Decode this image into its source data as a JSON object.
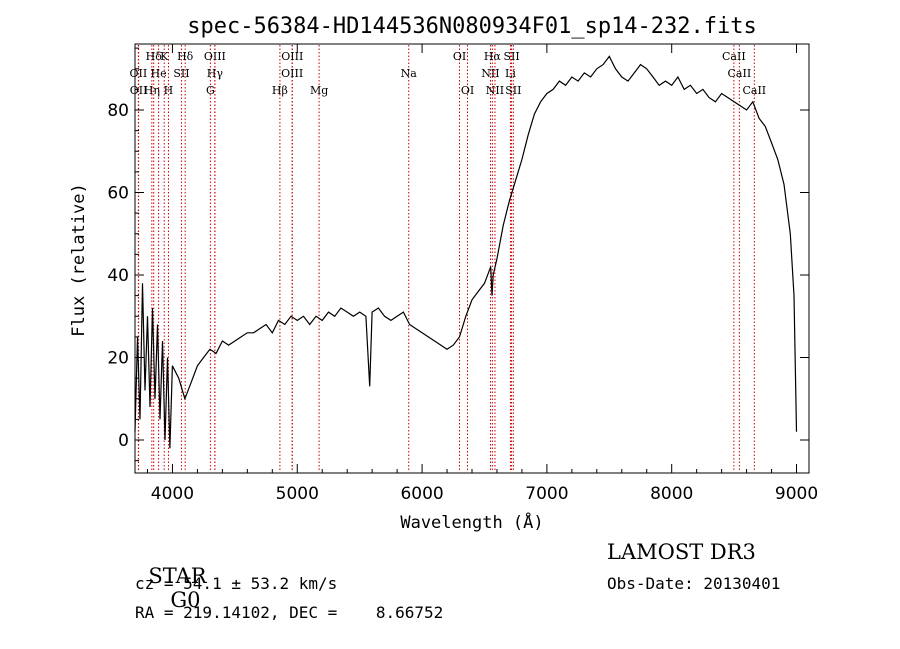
{
  "chart_data": {
    "type": "line",
    "title": "spec-56384-HD144536N080934F01_sp14-232.fits",
    "xlabel": "Wavelength (Å)",
    "ylabel": "Flux (relative)",
    "xlim": [
      3700,
      9100
    ],
    "ylim": [
      -8,
      96
    ],
    "xticks": [
      4000,
      5000,
      6000,
      7000,
      8000,
      9000
    ],
    "xtick_labels": [
      "4000",
      "5000",
      "6000",
      "7000",
      "8000",
      "9000"
    ],
    "yticks": [
      0,
      20,
      40,
      60,
      80
    ],
    "ytick_labels": [
      "0",
      "20",
      "40",
      "60",
      "80"
    ],
    "line_color": "#000000",
    "marker_color": "#cc0000",
    "series": [
      {
        "name": "flux",
        "x": [
          3700,
          3720,
          3740,
          3760,
          3780,
          3800,
          3820,
          3840,
          3860,
          3880,
          3900,
          3920,
          3940,
          3960,
          3980,
          4000,
          4050,
          4100,
          4150,
          4200,
          4250,
          4300,
          4350,
          4400,
          4450,
          4500,
          4550,
          4600,
          4650,
          4700,
          4750,
          4800,
          4850,
          4900,
          4950,
          5000,
          5050,
          5100,
          5150,
          5200,
          5250,
          5300,
          5350,
          5400,
          5450,
          5500,
          5550,
          5580,
          5600,
          5650,
          5700,
          5750,
          5800,
          5850,
          5900,
          5950,
          6000,
          6050,
          6100,
          6150,
          6200,
          6250,
          6300,
          6350,
          6400,
          6450,
          6500,
          6550,
          6560,
          6570,
          6600,
          6650,
          6700,
          6750,
          6800,
          6850,
          6900,
          6950,
          7000,
          7050,
          7100,
          7150,
          7200,
          7250,
          7300,
          7350,
          7400,
          7450,
          7500,
          7550,
          7600,
          7650,
          7700,
          7750,
          7800,
          7850,
          7900,
          7950,
          8000,
          8050,
          8100,
          8150,
          8200,
          8250,
          8300,
          8350,
          8400,
          8450,
          8500,
          8550,
          8600,
          8650,
          8700,
          8750,
          8800,
          8850,
          8900,
          8950,
          8980,
          9000
        ],
        "y": [
          2,
          25,
          5,
          38,
          12,
          30,
          8,
          32,
          10,
          28,
          5,
          24,
          0,
          20,
          -2,
          18,
          15,
          10,
          14,
          18,
          20,
          22,
          21,
          24,
          23,
          24,
          25,
          26,
          26,
          27,
          28,
          26,
          29,
          28,
          30,
          29,
          30,
          28,
          30,
          29,
          31,
          30,
          32,
          31,
          30,
          31,
          30,
          13,
          31,
          32,
          30,
          29,
          30,
          31,
          28,
          27,
          26,
          25,
          24,
          23,
          22,
          23,
          25,
          30,
          34,
          36,
          38,
          42,
          35,
          40,
          44,
          52,
          58,
          63,
          68,
          74,
          79,
          82,
          84,
          85,
          87,
          86,
          88,
          87,
          89,
          88,
          90,
          91,
          93,
          90,
          88,
          87,
          89,
          91,
          90,
          88,
          86,
          87,
          86,
          88,
          85,
          86,
          84,
          85,
          83,
          82,
          84,
          83,
          82,
          81,
          80,
          82,
          78,
          76,
          72,
          68,
          62,
          50,
          35,
          2
        ]
      }
    ],
    "lines": [
      {
        "label": "Hδ",
        "x": 3850,
        "tier": 0
      },
      {
        "label": "K",
        "x": 3934,
        "tier": 0
      },
      {
        "label": "Hδ",
        "x": 4102,
        "tier": 0
      },
      {
        "label": "OIII",
        "x": 4340,
        "tier": 0
      },
      {
        "label": "OIII",
        "x": 4960,
        "tier": 0
      },
      {
        "label": "OI",
        "x": 6300,
        "tier": 0
      },
      {
        "label": "Hα",
        "x": 6563,
        "tier": 0
      },
      {
        "label": "SII",
        "x": 6717,
        "tier": 0
      },
      {
        "label": "CaII",
        "x": 8498,
        "tier": 0
      },
      {
        "label": "OII",
        "x": 3727,
        "tier": 1
      },
      {
        "label": "He",
        "x": 3889,
        "tier": 1
      },
      {
        "label": "SII",
        "x": 4072,
        "tier": 1
      },
      {
        "label": "Hγ",
        "x": 4340,
        "tier": 1
      },
      {
        "label": "OIII",
        "x": 4959,
        "tier": 1
      },
      {
        "label": "Na",
        "x": 5893,
        "tier": 1
      },
      {
        "label": "NII",
        "x": 6548,
        "tier": 1
      },
      {
        "label": "Li",
        "x": 6708,
        "tier": 1
      },
      {
        "label": "CaII",
        "x": 8542,
        "tier": 1
      },
      {
        "label": "OII",
        "x": 3729,
        "tier": 2
      },
      {
        "label": "Hη",
        "x": 3835,
        "tier": 2
      },
      {
        "label": "H",
        "x": 3968,
        "tier": 2
      },
      {
        "label": "G",
        "x": 4304,
        "tier": 2
      },
      {
        "label": "Hβ",
        "x": 4861,
        "tier": 2
      },
      {
        "label": "Mg",
        "x": 5175,
        "tier": 2
      },
      {
        "label": "OI",
        "x": 6364,
        "tier": 2
      },
      {
        "label": "NII",
        "x": 6584,
        "tier": 2
      },
      {
        "label": "SII",
        "x": 6731,
        "tier": 2
      },
      {
        "label": "CaII",
        "x": 8662,
        "tier": 2
      }
    ]
  },
  "info": {
    "class": "STAR",
    "subclass": "G0",
    "survey": "LAMOST DR3",
    "cz": "cz = 54.1 ± 53.2 km/s",
    "obs_date": "Obs-Date: 20130401",
    "radec": "RA = 219.14102, DEC =    8.66752"
  }
}
